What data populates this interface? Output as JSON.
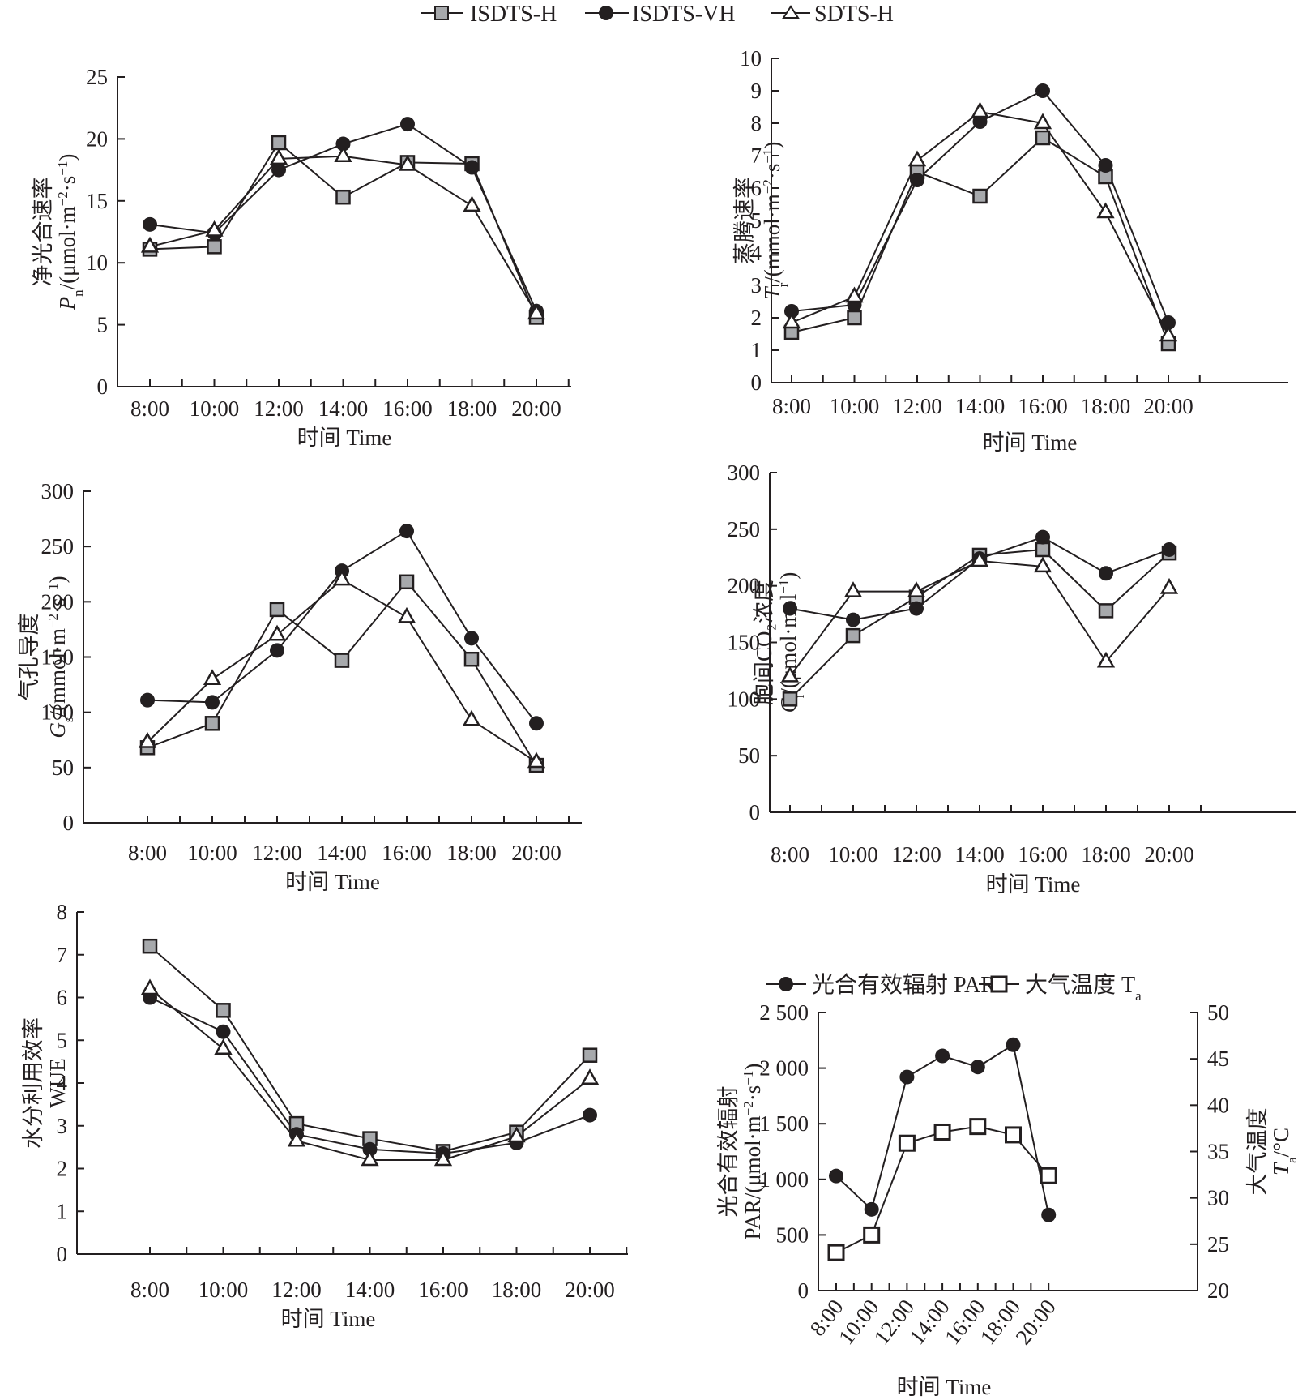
{
  "legend": {
    "series": [
      {
        "name": "ISDTS-H",
        "marker": "square-gray"
      },
      {
        "name": "ISDTS-VH",
        "marker": "circle-black"
      },
      {
        "name": "SDTS-H",
        "marker": "triangle-white"
      }
    ]
  },
  "colors": {
    "line": "#231f20",
    "square_fill": "#a7a9ac",
    "circle_fill": "#231f20",
    "open_fill": "#ffffff"
  },
  "chart_data": [
    {
      "id": "pn",
      "type": "line",
      "title": "",
      "ylabel": [
        "净光合速率",
        "Pn/(μmol·m⁻²·s⁻¹)"
      ],
      "xlabel": "时间 Time",
      "categories": [
        "8:00",
        "10:00",
        "12:00",
        "14:00",
        "16:00",
        "18:00",
        "20:00"
      ],
      "ylim": [
        0,
        25
      ],
      "yticks": [
        0,
        5,
        10,
        15,
        20,
        25
      ],
      "series": [
        {
          "name": "ISDTS-H",
          "values": [
            11.1,
            11.3,
            19.7,
            15.3,
            18.1,
            18.0,
            5.6
          ]
        },
        {
          "name": "ISDTS-VH",
          "values": [
            13.1,
            12.4,
            17.5,
            19.6,
            21.2,
            17.7,
            6.1
          ]
        },
        {
          "name": "SDTS-H",
          "values": [
            11.3,
            12.6,
            18.4,
            18.6,
            17.9,
            14.6,
            5.9
          ]
        }
      ],
      "grid": false
    },
    {
      "id": "tr",
      "type": "line",
      "title": "",
      "ylabel": [
        "蒸腾速率",
        "Tr/(mmol·m⁻²·s⁻¹)"
      ],
      "xlabel": "时间 Time",
      "categories": [
        "8:00",
        "10:00",
        "12:00",
        "14:00",
        "16:00",
        "18:00",
        "20:00"
      ],
      "ylim": [
        0,
        10
      ],
      "yticks": [
        0,
        1,
        2,
        3,
        4,
        5,
        6,
        7,
        8,
        9,
        10
      ],
      "series": [
        {
          "name": "ISDTS-H",
          "values": [
            1.55,
            2.0,
            6.5,
            5.75,
            7.55,
            6.35,
            1.2
          ]
        },
        {
          "name": "ISDTS-VH",
          "values": [
            2.2,
            2.4,
            6.25,
            8.05,
            9.0,
            6.7,
            1.85
          ]
        },
        {
          "name": "SDTS-H",
          "values": [
            1.85,
            2.65,
            6.85,
            8.35,
            8.0,
            5.25,
            1.45
          ]
        }
      ],
      "grid": false
    },
    {
      "id": "gs",
      "type": "line",
      "title": "",
      "ylabel": [
        "气孔导度",
        "Gs/(mmol·m⁻²·s⁻¹)"
      ],
      "xlabel": "时间 Time",
      "categories": [
        "8:00",
        "10:00",
        "12:00",
        "14:00",
        "16:00",
        "18:00",
        "20:00"
      ],
      "ylim": [
        0,
        300
      ],
      "yticks": [
        0,
        50,
        100,
        150,
        200,
        250,
        300
      ],
      "series": [
        {
          "name": "ISDTS-H",
          "values": [
            68,
            90,
            193,
            147,
            218,
            148,
            52
          ]
        },
        {
          "name": "ISDTS-VH",
          "values": [
            111,
            109,
            156,
            228,
            264,
            167,
            90
          ]
        },
        {
          "name": "SDTS-H",
          "values": [
            73,
            130,
            170,
            220,
            186,
            93,
            55
          ]
        }
      ],
      "grid": false
    },
    {
      "id": "ci",
      "type": "line",
      "title": "",
      "ylabel": [
        "胞间CO₂浓度",
        "Ci/(μmol·mol⁻¹)"
      ],
      "xlabel": "时间 Time",
      "categories": [
        "8:00",
        "10:00",
        "12:00",
        "14:00",
        "16:00",
        "18:00",
        "20:00"
      ],
      "ylim": [
        0,
        300
      ],
      "yticks": [
        0,
        50,
        100,
        150,
        200,
        250,
        300
      ],
      "series": [
        {
          "name": "ISDTS-H",
          "values": [
            100,
            156,
            190,
            227,
            232,
            178,
            229
          ]
        },
        {
          "name": "ISDTS-VH",
          "values": [
            180,
            170,
            180,
            224,
            243,
            211,
            232
          ]
        },
        {
          "name": "SDTS-H",
          "values": [
            120,
            195,
            195,
            222,
            217,
            133,
            198
          ]
        }
      ],
      "grid": false
    },
    {
      "id": "wue",
      "type": "line",
      "title": "",
      "ylabel": [
        "水分利用效率",
        "WUE"
      ],
      "xlabel": "时间 Time",
      "categories": [
        "8:00",
        "10:00",
        "12:00",
        "14:00",
        "16:00",
        "18:00",
        "20:00"
      ],
      "ylim": [
        0,
        8
      ],
      "yticks": [
        0,
        1,
        2,
        3,
        4,
        5,
        6,
        7,
        8
      ],
      "series": [
        {
          "name": "ISDTS-H",
          "values": [
            7.2,
            5.7,
            3.05,
            2.7,
            2.4,
            2.85,
            4.65
          ]
        },
        {
          "name": "ISDTS-VH",
          "values": [
            6.0,
            5.2,
            2.8,
            2.45,
            2.35,
            2.6,
            3.25
          ]
        },
        {
          "name": "SDTS-H",
          "values": [
            6.2,
            4.8,
            2.65,
            2.2,
            2.2,
            2.75,
            4.1
          ]
        }
      ],
      "grid": false
    },
    {
      "id": "par",
      "type": "line",
      "title": "",
      "ylabel": [
        "光合有效辐射",
        "PAR/(μmol·m⁻²·s⁻¹)"
      ],
      "y2label": [
        "大气温度",
        "Ta/°C"
      ],
      "xlabel": "时间  Time",
      "categories": [
        "8:00",
        "10:00",
        "12:00",
        "14:00",
        "16:00",
        "18:00",
        "20:00"
      ],
      "ylim": [
        0,
        2500
      ],
      "yticks": [
        0,
        500,
        1000,
        1500,
        2000,
        2500
      ],
      "ytick_labels": [
        "0",
        "500",
        "1 000",
        "1 500",
        "2 000",
        "2 500"
      ],
      "y2lim": [
        20,
        50
      ],
      "y2ticks": [
        20,
        25,
        30,
        35,
        40,
        45,
        50
      ],
      "legend": [
        "光合有效辐射 PAR",
        "大气温度 Ta"
      ],
      "legend_position": "top",
      "series": [
        {
          "name": "光合有效辐射 PAR",
          "axis": "left",
          "values": [
            1030,
            730,
            1920,
            2110,
            2010,
            2210,
            680
          ]
        },
        {
          "name": "大气温度 Ta",
          "axis": "right",
          "values": [
            24.1,
            26.0,
            35.9,
            37.1,
            37.7,
            36.8,
            32.4
          ]
        }
      ],
      "grid": false
    }
  ]
}
